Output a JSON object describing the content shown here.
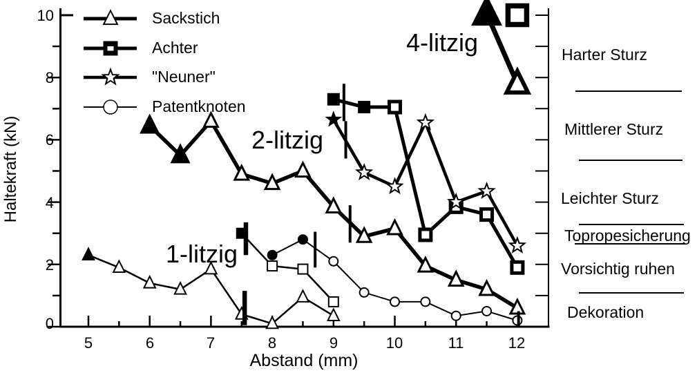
{
  "axes": {
    "x": {
      "label": "Abstand (mm)",
      "tick_labels": [
        "5",
        "6",
        "7",
        "8",
        "9",
        "10",
        "11",
        "12"
      ]
    },
    "y": {
      "label": "Haltekraft (kN)",
      "tick_labels": [
        "0",
        "2",
        "4",
        "6",
        "8",
        "10"
      ]
    }
  },
  "legend": {
    "items": [
      {
        "label": "Sackstich",
        "marker": "open-triangle"
      },
      {
        "label": "Achter",
        "marker": "filled-square"
      },
      {
        "label": "\"Neuner\"",
        "marker": "open-star"
      },
      {
        "label": "Patentknoten",
        "marker": "open-circle"
      }
    ]
  },
  "annotations": {
    "group1": "1-litzig",
    "group2": "2-litzig",
    "group4": "4-litzig"
  },
  "right_panel": {
    "labels": [
      "Harter Sturz",
      "Mittlerer Sturz",
      "Leichter Sturz",
      "Topropesicherung",
      "Vorsichtig ruhen",
      "Dekoration"
    ],
    "topropesicherung_underlined": true,
    "boundaries_kn": [
      7.6,
      5.3,
      3.3,
      1.1
    ]
  },
  "chart_data": {
    "type": "line",
    "title": "",
    "xlabel": "Abstand (mm)",
    "ylabel": "Haltekraft (kN)",
    "xlim": [
      4.5,
      12.5
    ],
    "ylim": [
      0,
      10.2
    ],
    "x_major_ticks": [
      5,
      6,
      7,
      8,
      9,
      10,
      11,
      12
    ],
    "y_major_ticks": [
      0,
      2,
      4,
      6,
      8,
      10
    ],
    "grid": false,
    "legend_position": "top-left",
    "colors": {
      "foreground": "#000000",
      "background": "#ffffff"
    },
    "series": [
      {
        "name": "Sackstich 1-litzig",
        "marker": "triangle",
        "line_width": 2.5,
        "marker_size": 15,
        "marker_stroke": 2,
        "points": [
          {
            "x": 5,
            "y": 2.3,
            "filled": true
          },
          {
            "x": 5.5,
            "y": 1.9
          },
          {
            "x": 6,
            "y": 1.4
          },
          {
            "x": 6.5,
            "y": 1.2
          },
          {
            "x": 7,
            "y": 1.85
          },
          {
            "x": 7.5,
            "y": 0.4
          },
          {
            "x": 8,
            "y": 0.1
          },
          {
            "x": 8.5,
            "y": 0.95
          },
          {
            "x": 9,
            "y": 0.35
          }
        ]
      },
      {
        "name": "Achter 1-litzig",
        "marker": "square",
        "line_width": 2.5,
        "marker_size": 14,
        "marker_stroke": 2,
        "points": [
          {
            "x": 7.5,
            "y": 3.0,
            "filled": true
          },
          {
            "x": 8,
            "y": 1.95
          },
          {
            "x": 8.5,
            "y": 1.85
          },
          {
            "x": 9,
            "y": 0.8
          }
        ]
      },
      {
        "name": "Patentknoten 1-litzig",
        "marker": "circle",
        "line_width": 2,
        "marker_size": 13,
        "marker_stroke": 2,
        "points": [
          {
            "x": 8,
            "y": 2.3,
            "filled": true
          },
          {
            "x": 8.5,
            "y": 2.8,
            "filled": true
          },
          {
            "x": 9,
            "y": 2.1
          },
          {
            "x": 9.5,
            "y": 1.1
          },
          {
            "x": 10,
            "y": 0.8
          },
          {
            "x": 10.5,
            "y": 0.8
          },
          {
            "x": 11,
            "y": 0.35
          },
          {
            "x": 11.5,
            "y": 0.5
          },
          {
            "x": 12,
            "y": 0.2
          }
        ]
      },
      {
        "name": "Sackstich 2-litzig",
        "marker": "triangle",
        "line_width": 5.5,
        "marker_size": 18,
        "marker_stroke": 3,
        "points": [
          {
            "x": 6,
            "y": 6.45,
            "filled": true,
            "size": 22
          },
          {
            "x": 6.5,
            "y": 5.5,
            "filled": true,
            "size": 22
          },
          {
            "x": 7,
            "y": 6.6
          },
          {
            "x": 7.5,
            "y": 4.9
          },
          {
            "x": 8,
            "y": 4.6
          },
          {
            "x": 8.5,
            "y": 5.0
          },
          {
            "x": 9,
            "y": 3.85
          },
          {
            "x": 9.5,
            "y": 2.9
          },
          {
            "x": 10,
            "y": 3.15
          },
          {
            "x": 10.5,
            "y": 1.95
          },
          {
            "x": 11,
            "y": 1.5
          },
          {
            "x": 11.5,
            "y": 1.2
          },
          {
            "x": 12,
            "y": 0.6
          }
        ]
      },
      {
        "name": "Achter 2-litzig",
        "marker": "square",
        "line_width": 5,
        "marker_size": 16,
        "marker_stroke": 5,
        "points": [
          {
            "x": 9,
            "y": 7.3,
            "filled": true
          },
          {
            "x": 9.5,
            "y": 7.05,
            "filled": true
          },
          {
            "x": 10,
            "y": 7.05
          },
          {
            "x": 10.5,
            "y": 2.95
          },
          {
            "x": 11,
            "y": 3.85
          },
          {
            "x": 11.5,
            "y": 3.6
          },
          {
            "x": 12,
            "y": 1.9
          }
        ]
      },
      {
        "name": "Neuner 2-litzig",
        "marker": "star",
        "line_width": 4.5,
        "marker_size": 11,
        "marker_stroke": 2,
        "points": [
          {
            "x": 9,
            "y": 6.65,
            "filled": true,
            "size": 10
          },
          {
            "x": 9.5,
            "y": 4.95
          },
          {
            "x": 10,
            "y": 4.5
          },
          {
            "x": 10.5,
            "y": 6.55
          },
          {
            "x": 11,
            "y": 4.0
          },
          {
            "x": 11.5,
            "y": 4.35
          },
          {
            "x": 12,
            "y": 2.6
          }
        ]
      },
      {
        "name": "Sackstich 4-litzig",
        "marker": "triangle",
        "line_width": 7,
        "marker_size": 28,
        "marker_stroke": 6,
        "points": [
          {
            "x": 11.5,
            "y": 10.05,
            "filled": true,
            "size": 32
          },
          {
            "x": 12,
            "y": 7.8
          }
        ]
      },
      {
        "name": "Achter 4-litzig",
        "marker": "square",
        "line_width": 0,
        "marker_size": 27,
        "marker_stroke": 7.5,
        "points": [
          {
            "x": 12,
            "y": 10.0
          }
        ]
      }
    ],
    "error_bars": [
      {
        "x": 7.55,
        "y_low": 0.05,
        "y_high": 1.15,
        "thick": true
      },
      {
        "x": 7.57,
        "y_low": 2.3,
        "y_high": 3.35,
        "thick": true
      },
      {
        "x": 8.7,
        "y_low": 1.9,
        "y_high": 3.05,
        "thick": false
      },
      {
        "x": 9.17,
        "y_low": 6.6,
        "y_high": 7.8,
        "thick": false
      },
      {
        "x": 9.2,
        "y_low": 5.4,
        "y_high": 6.6,
        "thick": false
      },
      {
        "x": 9.27,
        "y_low": 2.7,
        "y_high": 3.9,
        "thick": false
      },
      {
        "x": 12.02,
        "y_low": 0.0,
        "y_high": 0.5,
        "thick": false
      }
    ]
  }
}
